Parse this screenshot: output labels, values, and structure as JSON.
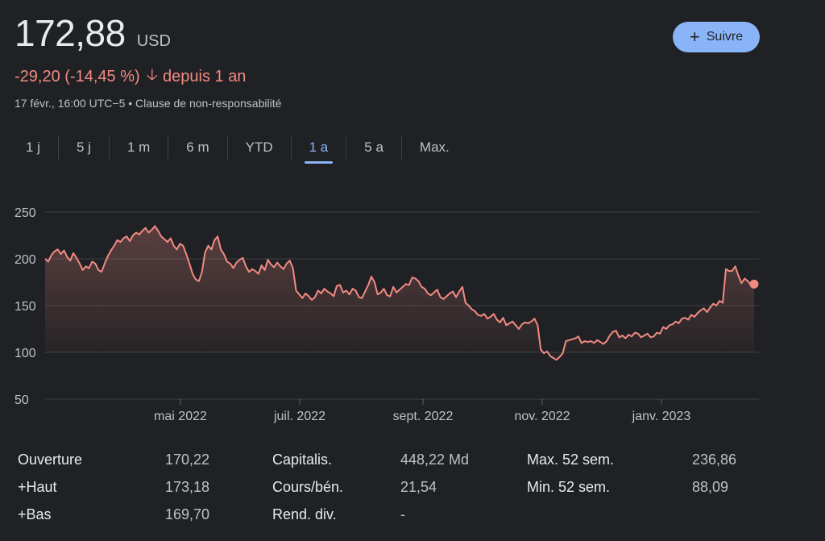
{
  "header": {
    "price": "172,88",
    "currency": "USD",
    "change": "-29,20 (-14,45 %)",
    "period": "depuis 1 an",
    "timestamp": "17 févr., 16:00 UTC−5 • Clause de non-responsabilité",
    "follow_label": "Suivre"
  },
  "tabs": [
    {
      "label": "1 j"
    },
    {
      "label": "5 j"
    },
    {
      "label": "1 m"
    },
    {
      "label": "6 m"
    },
    {
      "label": "YTD"
    },
    {
      "label": "1 a",
      "active": true
    },
    {
      "label": "5 a"
    },
    {
      "label": "Max."
    }
  ],
  "chart_data": {
    "type": "line",
    "y_ticks": [
      "250",
      "200",
      "150",
      "100",
      "50"
    ],
    "ylim": [
      50,
      250
    ],
    "x_ticks": [
      "mai 2022",
      "juil. 2022",
      "sept. 2022",
      "nov. 2022",
      "janv. 2023"
    ],
    "grid": true,
    "color": "#f28b82",
    "series": [
      {
        "values": [
          200,
          197,
          204,
          208,
          210,
          205,
          209,
          202,
          198,
          206,
          201,
          195,
          188,
          192,
          190,
          197,
          195,
          188,
          186,
          195,
          203,
          209,
          214,
          220,
          218,
          222,
          224,
          219,
          225,
          228,
          226,
          230,
          233,
          228,
          231,
          235,
          230,
          224,
          221,
          218,
          222,
          214,
          210,
          216,
          214,
          205,
          195,
          184,
          178,
          176,
          186,
          207,
          214,
          210,
          220,
          224,
          210,
          205,
          197,
          195,
          190,
          196,
          199,
          201,
          192,
          186,
          189,
          187,
          184,
          193,
          188,
          199,
          194,
          191,
          196,
          192,
          189,
          195,
          198,
          190,
          166,
          162,
          158,
          163,
          160,
          156,
          159,
          166,
          163,
          168,
          165,
          163,
          160,
          171,
          172,
          164,
          166,
          162,
          168,
          166,
          159,
          158,
          165,
          172,
          181,
          175,
          162,
          164,
          168,
          161,
          160,
          170,
          164,
          167,
          170,
          173,
          172,
          180,
          179,
          176,
          170,
          168,
          163,
          161,
          164,
          167,
          159,
          157,
          160,
          163,
          165,
          159,
          165,
          170,
          153,
          150,
          146,
          144,
          140,
          139,
          141,
          136,
          138,
          141,
          135,
          132,
          137,
          129,
          131,
          133,
          129,
          125,
          130,
          132,
          131,
          133,
          136,
          129,
          103,
          99,
          101,
          96,
          94,
          92,
          95,
          99,
          112,
          113,
          114,
          115,
          117,
          110,
          112,
          111,
          112,
          110,
          113,
          111,
          109,
          112,
          118,
          122,
          123,
          116,
          118,
          115,
          119,
          117,
          121,
          120,
          116,
          118,
          120,
          116,
          117,
          121,
          120,
          127,
          125,
          129,
          130,
          133,
          131,
          136,
          137,
          135,
          140,
          138,
          142,
          145,
          147,
          143,
          148,
          152,
          150,
          155,
          153,
          189,
          187,
          187,
          192,
          182,
          174,
          179,
          176,
          172,
          173
        ]
      }
    ]
  },
  "stats": {
    "col1": [
      {
        "label": "Ouverture",
        "value": "170,22"
      },
      {
        "label": "+Haut",
        "value": "173,18"
      },
      {
        "label": "+Bas",
        "value": "169,70"
      }
    ],
    "col2": [
      {
        "label": "Capitalis.",
        "value": "448,22 Md"
      },
      {
        "label": "Cours/bén.",
        "value": "21,54"
      },
      {
        "label": "Rend. div.",
        "value": "-"
      }
    ],
    "col3": [
      {
        "label": "Max. 52 sem.",
        "value": "236,86"
      },
      {
        "label": "Min. 52 sem.",
        "value": "88,09"
      }
    ]
  }
}
